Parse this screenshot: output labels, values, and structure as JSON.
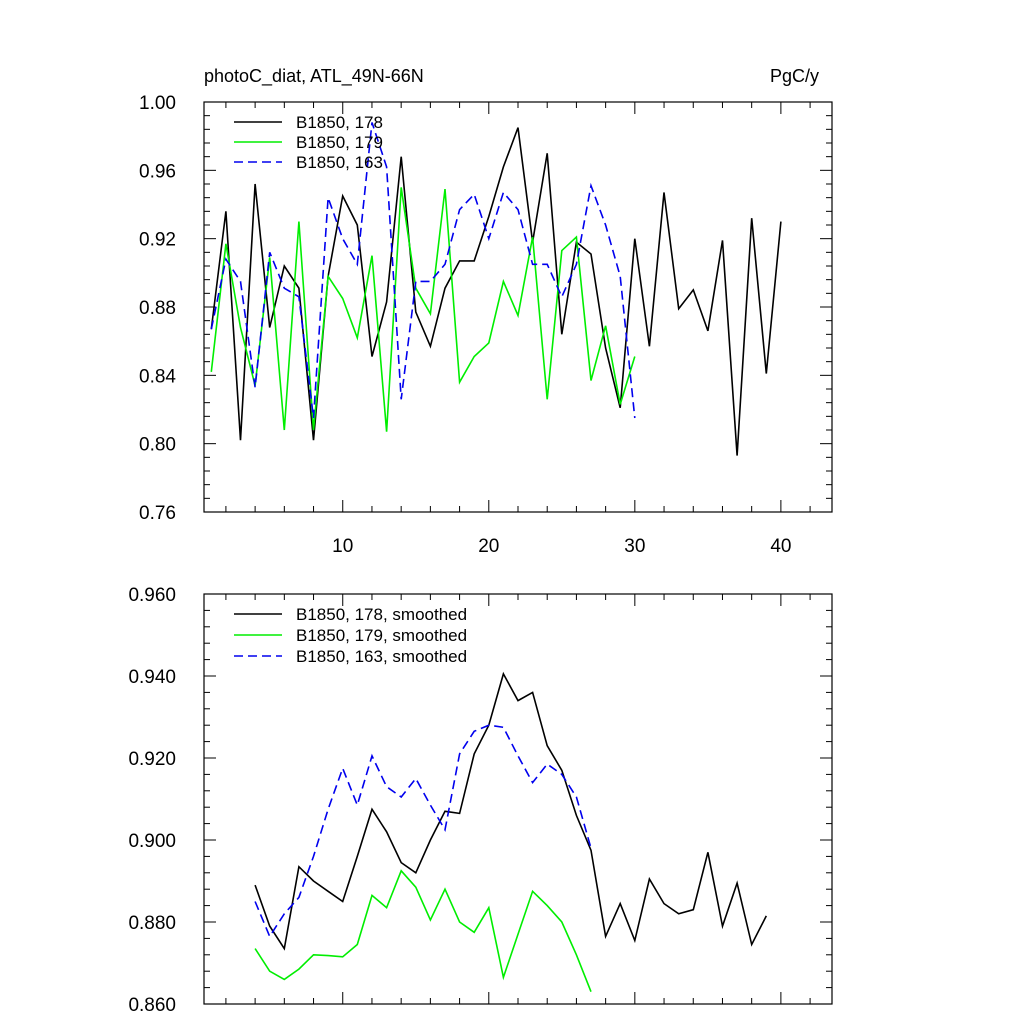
{
  "header": {
    "title_left": "photoC_diat, ATL_49N-66N",
    "title_right": "PgC/y"
  },
  "chart_data": [
    {
      "type": "line",
      "title": "photoC_diat, ATL_49N-66N",
      "units": "PgC/y",
      "xlim": [
        0.5,
        43.5
      ],
      "ylim": [
        0.76,
        1.0
      ],
      "x_ticks": [
        10,
        20,
        30,
        40
      ],
      "y_ticks": [
        0.76,
        0.8,
        0.84,
        0.88,
        0.92,
        0.96,
        1.0
      ],
      "y_tick_labels": [
        "0.76",
        "0.80",
        "0.84",
        "0.88",
        "0.92",
        "0.96",
        "1.00"
      ],
      "legend_position": "top-left",
      "series": [
        {
          "name": "B1850, 178",
          "color": "#000000",
          "dash": "solid",
          "x_start": 1,
          "values": [
            0.867,
            0.936,
            0.802,
            0.952,
            0.868,
            0.904,
            0.891,
            0.802,
            0.898,
            0.945,
            0.928,
            0.851,
            0.883,
            0.968,
            0.877,
            0.857,
            0.891,
            0.907,
            0.907,
            0.933,
            0.962,
            0.985,
            0.918,
            0.97,
            0.864,
            0.918,
            0.911,
            0.856,
            0.821,
            0.92,
            0.857,
            0.947,
            0.879,
            0.89,
            0.866,
            0.919,
            0.793,
            0.932,
            0.841,
            0.93
          ]
        },
        {
          "name": "B1850, 179",
          "color": "#00ee00",
          "dash": "solid",
          "x_start": 1,
          "values": [
            0.842,
            0.917,
            0.868,
            0.834,
            0.909,
            0.808,
            0.93,
            0.808,
            0.898,
            0.885,
            0.862,
            0.91,
            0.807,
            0.95,
            0.891,
            0.876,
            0.949,
            0.836,
            0.851,
            0.859,
            0.895,
            0.875,
            0.921,
            0.826,
            0.913,
            0.921,
            0.837,
            0.869,
            0.823,
            0.851
          ]
        },
        {
          "name": "B1850, 163",
          "color": "#0000ee",
          "dash": "dashed",
          "x_start": 1,
          "values": [
            0.867,
            0.908,
            0.895,
            0.833,
            0.912,
            0.891,
            0.886,
            0.815,
            0.944,
            0.92,
            0.905,
            0.988,
            0.962,
            0.826,
            0.895,
            0.895,
            0.905,
            0.937,
            0.946,
            0.92,
            0.947,
            0.937,
            0.905,
            0.905,
            0.886,
            0.905,
            0.951,
            0.928,
            0.898,
            0.815
          ]
        }
      ]
    },
    {
      "type": "line",
      "xlim": [
        0.5,
        43.5
      ],
      "ylim": [
        0.86,
        0.96
      ],
      "x_ticks": [
        10,
        20,
        30,
        40
      ],
      "y_ticks": [
        0.86,
        0.88,
        0.9,
        0.92,
        0.94,
        0.96
      ],
      "y_tick_labels": [
        "0.860",
        "0.880",
        "0.900",
        "0.920",
        "0.940",
        "0.960"
      ],
      "legend_position": "top-left",
      "series": [
        {
          "name": "B1850, 178, smoothed",
          "color": "#000000",
          "dash": "solid",
          "x_start": 4,
          "values": [
            0.889,
            0.879,
            0.8735,
            0.8935,
            0.89,
            0.8875,
            0.885,
            0.896,
            0.9075,
            0.902,
            0.8945,
            0.892,
            0.9,
            0.907,
            0.9065,
            0.921,
            0.928,
            0.9405,
            0.934,
            0.936,
            0.923,
            0.917,
            0.906,
            0.8975,
            0.8765,
            0.8845,
            0.8755,
            0.8905,
            0.8845,
            0.882,
            0.883,
            0.897,
            0.879,
            0.8895,
            0.8745,
            0.8815
          ]
        },
        {
          "name": "B1850, 179, smoothed",
          "color": "#00ee00",
          "dash": "solid",
          "x_start": 4,
          "values": [
            0.8735,
            0.868,
            0.866,
            0.8685,
            0.872,
            0.8718,
            0.8715,
            0.8745,
            0.8865,
            0.8835,
            0.8925,
            0.8885,
            0.8805,
            0.888,
            0.88,
            0.8775,
            0.8835,
            0.8665,
            0.877,
            0.8875,
            0.884,
            0.88,
            0.872,
            0.863
          ]
        },
        {
          "name": "B1850, 163, smoothed",
          "color": "#0000ee",
          "dash": "dashed",
          "x_start": 4,
          "values": [
            0.885,
            0.8765,
            0.882,
            0.886,
            0.896,
            0.9075,
            0.9175,
            0.9085,
            0.9205,
            0.913,
            0.9105,
            0.915,
            0.9085,
            0.9025,
            0.921,
            0.9265,
            0.928,
            0.9275,
            0.9205,
            0.914,
            0.9185,
            0.916,
            0.9105,
            0.898
          ]
        }
      ]
    }
  ]
}
